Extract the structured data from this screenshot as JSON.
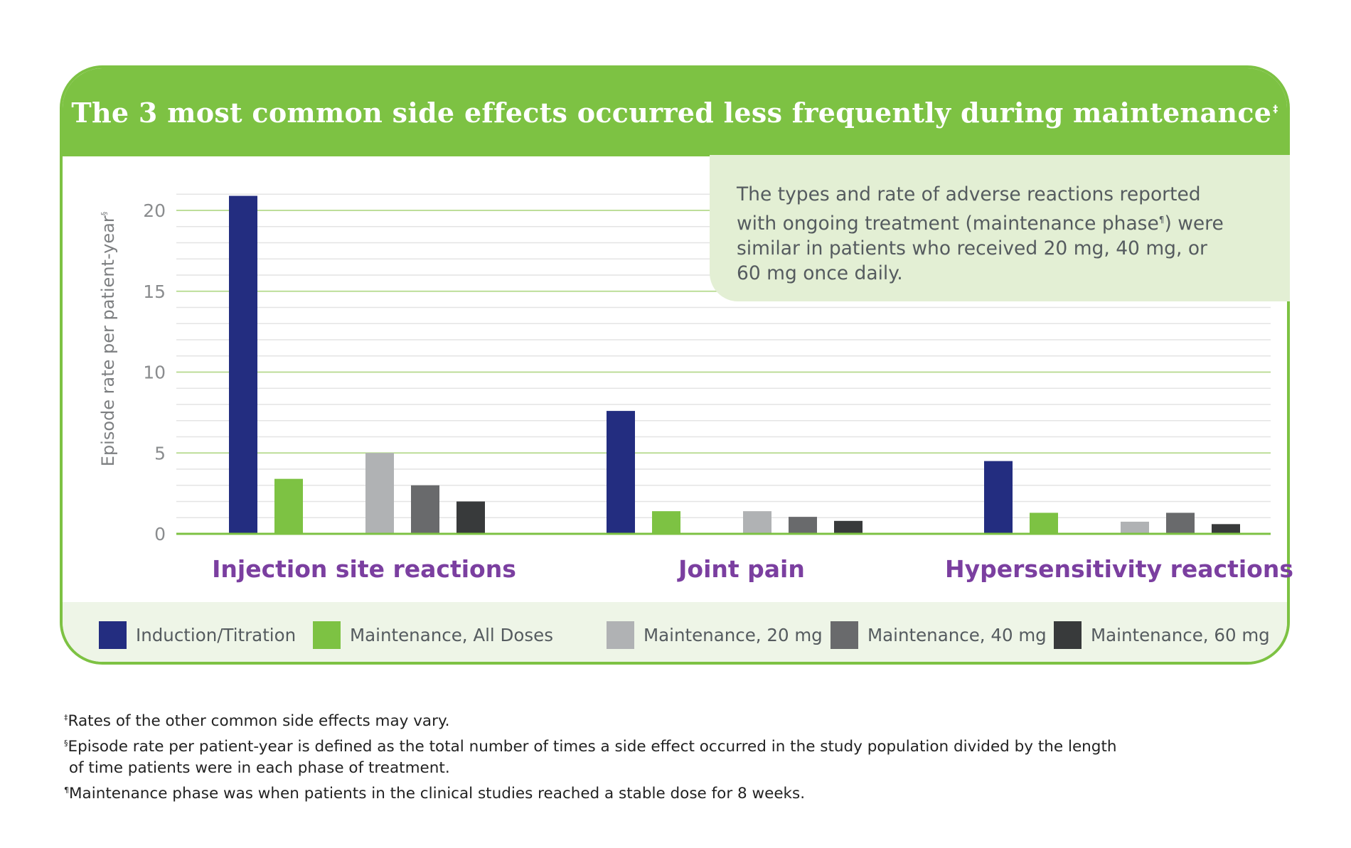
{
  "title": "The 3 most common side effects occurred less frequently during maintenance",
  "title_mark": "‡",
  "callout": {
    "line1": "The types and rate of adverse reactions reported",
    "line2a": "with ongoing treatment (maintenance phase",
    "line2_mark": "¶",
    "line2b": ") were",
    "line3": "similar in patients who received 20 mg, 40 mg, or",
    "line4": "60 mg once daily."
  },
  "chart_data": {
    "type": "bar",
    "categories": [
      "Injection site reactions",
      "Joint pain",
      "Hypersensitivity reactions"
    ],
    "series": [
      {
        "name": "Induction/Titration",
        "color": "#232d80",
        "values": [
          20.9,
          7.6,
          4.5
        ]
      },
      {
        "name": "Maintenance, All Doses",
        "color": "#7dc243",
        "values": [
          3.4,
          1.4,
          1.3
        ]
      },
      {
        "name": "Maintenance, 20 mg",
        "color": "#b0b2b4",
        "values": [
          5.0,
          1.4,
          0.75
        ]
      },
      {
        "name": "Maintenance, 40 mg",
        "color": "#696a6c",
        "values": [
          3.0,
          1.05,
          1.3
        ]
      },
      {
        "name": "Maintenance, 60 mg",
        "color": "#383a3b",
        "values": [
          2.0,
          0.8,
          0.6
        ]
      }
    ],
    "ylabel": "Episode rate per patient-year",
    "ylabel_mark": "§",
    "ylim": [
      0,
      22
    ],
    "yticks": [
      0,
      5,
      10,
      15,
      20
    ],
    "grid": true,
    "legend_position": "bottom"
  },
  "footnotes": [
    {
      "mark": "‡",
      "text": "Rates of the other common side effects may vary."
    },
    {
      "mark": "§",
      "text": "Episode rate per patient-year is defined as the total number of times a side effect occurred in the study population divided by the length"
    },
    {
      "mark": "",
      "text": " of time patients were in each phase of treatment."
    },
    {
      "mark": "¶",
      "text": "Maintenance phase was when patients in the clinical studies reached a stable dose for 8 weeks."
    }
  ]
}
